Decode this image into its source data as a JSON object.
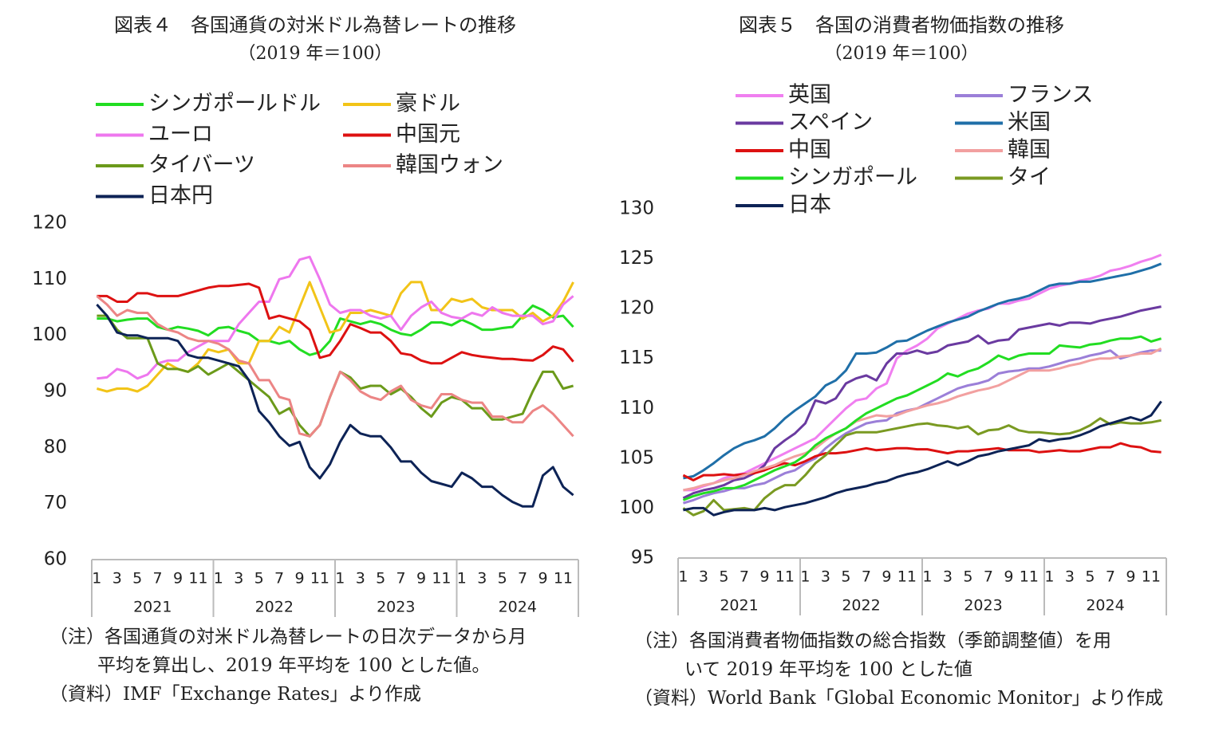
{
  "chart_data": [
    {
      "type": "line",
      "title": "図表４　各国通貨の対米ドル為替レートの推移",
      "subtitle": "（2019 年＝100）",
      "categories": [
        "1",
        null,
        "3",
        null,
        "5",
        null,
        "7",
        null,
        "9",
        null,
        "11",
        null,
        "1",
        null,
        "3",
        null,
        "5",
        null,
        "7",
        null,
        "9",
        null,
        "11",
        null,
        "1",
        null,
        "3",
        null,
        "5",
        null,
        "7",
        null,
        "9",
        null,
        "11",
        null,
        "1",
        null,
        "3",
        null,
        "5",
        null,
        "7",
        null,
        "9",
        null,
        "11",
        null
      ],
      "x_groups": [
        "2021",
        "2022",
        "2023",
        "2024"
      ],
      "ylim": [
        60,
        120
      ],
      "yticks": [
        60,
        70,
        80,
        90,
        100,
        110,
        120
      ],
      "series": [
        {
          "name": "シンガポールドル",
          "color": "#22dd22",
          "values": [
            103,
            103,
            102.5,
            102.8,
            103,
            103,
            101.5,
            101,
            101.5,
            101.2,
            100.8,
            100,
            101.3,
            101.5,
            100.8,
            100.3,
            99,
            99,
            98.5,
            99,
            97.5,
            96.5,
            97,
            99,
            103,
            102.5,
            102,
            102.5,
            102,
            101,
            100.3,
            100,
            101,
            102.3,
            102.3,
            101.8,
            102.8,
            102,
            101,
            101,
            101.3,
            101.5,
            103.5,
            105.3,
            104.5,
            103.2,
            103.5,
            101.5
          ]
        },
        {
          "name": "豪ドル",
          "color": "#f2c418",
          "values": [
            90.5,
            90,
            90.5,
            90.5,
            90,
            91,
            93,
            95,
            94,
            93.5,
            95,
            97.5,
            97,
            97.5,
            95,
            95,
            99,
            99,
            101.5,
            100.5,
            105,
            109.5,
            105,
            100.5,
            101,
            104,
            104,
            104.5,
            104,
            103.5,
            107.5,
            109.5,
            109.5,
            104.5,
            104.5,
            106.5,
            106,
            106.5,
            105,
            104.5,
            104.5,
            104.5,
            103,
            104,
            102.5,
            103.5,
            106,
            109.5
          ]
        },
        {
          "name": "ユーロ",
          "color": "#ee77ee",
          "values": [
            92.3,
            92.5,
            94,
            93.5,
            92.3,
            93,
            95,
            95.5,
            95.5,
            97,
            98,
            99,
            99,
            99,
            102,
            104,
            106,
            106,
            110,
            110.5,
            113.5,
            114,
            110,
            105.5,
            104,
            104.5,
            104.5,
            103.5,
            103,
            103.5,
            101,
            103.5,
            105,
            106,
            104,
            103.3,
            103,
            104,
            103.5,
            105,
            104,
            103.5,
            103.5,
            103.5,
            102,
            102.5,
            105.5,
            107
          ]
        },
        {
          "name": "中国元",
          "color": "#dd1111",
          "values": [
            107,
            107,
            106,
            106,
            107.5,
            107.5,
            107,
            107,
            107,
            107.5,
            108,
            108.5,
            108.8,
            108.8,
            109,
            109.2,
            108.5,
            103,
            103.5,
            103,
            102.5,
            101,
            96,
            96.5,
            99,
            102,
            101.3,
            100.5,
            100.5,
            99,
            96.8,
            96.5,
            95.5,
            95,
            95,
            96,
            97,
            96.5,
            96.2,
            96,
            95.8,
            95.8,
            95.6,
            95.5,
            96.5,
            98,
            97.5,
            95.3
          ]
        },
        {
          "name": "タイバーツ",
          "color": "#6b9a1a",
          "values": [
            103.5,
            103.5,
            101,
            99.5,
            99.5,
            99.5,
            95,
            94,
            94,
            93.5,
            94.5,
            93,
            94,
            95,
            93.5,
            92,
            90.5,
            89,
            86,
            87,
            84,
            82,
            84,
            89,
            93.5,
            92.5,
            90.5,
            91,
            91,
            89.5,
            90.5,
            89,
            87,
            85.5,
            88,
            89,
            88.5,
            87,
            87,
            85,
            85,
            85.5,
            86,
            90,
            93.5,
            93.5,
            90.5,
            91
          ]
        },
        {
          "name": "韓国ウォン",
          "color": "#ec8585",
          "values": [
            107,
            105.5,
            103.5,
            104.5,
            104,
            104,
            102,
            101,
            100.5,
            99.5,
            99,
            99,
            98.5,
            97.5,
            95.5,
            95,
            92,
            92,
            89,
            88.5,
            82.5,
            82,
            84,
            89,
            93.5,
            92,
            90,
            89,
            88.5,
            90,
            91,
            88.5,
            87.5,
            87,
            89.5,
            89.5,
            88.5,
            88,
            88,
            85.5,
            85.5,
            84.5,
            84.5,
            86.5,
            87.5,
            86,
            84,
            82
          ]
        },
        {
          "name": "日本円",
          "color": "#0d2356",
          "values": [
            105.5,
            103.5,
            100.5,
            100,
            100,
            99.5,
            99.5,
            99.5,
            99,
            96.5,
            96,
            96,
            95.5,
            95,
            94.5,
            92,
            86.5,
            84.5,
            82,
            80.3,
            81,
            76.5,
            74.5,
            77,
            81,
            84,
            82.5,
            82,
            82,
            80,
            77.5,
            77.5,
            75.5,
            74,
            73.5,
            73,
            75.5,
            74.5,
            73,
            73,
            71.5,
            70.3,
            69.5,
            69.5,
            75,
            76.5,
            73,
            71.5
          ]
        }
      ],
      "notes": [
        "（注）各国通貨の対米ドル為替レートの日次データから月",
        "平均を算出し、2019 年平均を 100 とした値。",
        "（資料）IMF「Exchange Rates」より作成"
      ]
    },
    {
      "type": "line",
      "title": "図表５　各国の消費者物価指数の推移",
      "subtitle": "（2019 年＝100）",
      "categories": [
        "1",
        null,
        "3",
        null,
        "5",
        null,
        "7",
        null,
        "9",
        null,
        "11",
        null,
        "1",
        null,
        "3",
        null,
        "5",
        null,
        "7",
        null,
        "9",
        null,
        "11",
        null,
        "1",
        null,
        "3",
        null,
        "5",
        null,
        "7",
        null,
        "9",
        null,
        "11",
        null,
        "1",
        null,
        "3",
        null,
        "5",
        null,
        "7",
        null,
        "9",
        null,
        "11",
        null
      ],
      "x_groups": [
        "2021",
        "2022",
        "2023",
        "2024"
      ],
      "ylim": [
        95,
        130
      ],
      "yticks": [
        95,
        100,
        105,
        110,
        115,
        120,
        125,
        130
      ],
      "series": [
        {
          "name": "英国",
          "color": "#f07ff0",
          "values": [
            101.8,
            101.8,
            102.2,
            102.5,
            103,
            103.3,
            103.5,
            104,
            104.5,
            105,
            105.5,
            106,
            106.5,
            107,
            108,
            109,
            110,
            110.8,
            111,
            112,
            112.5,
            115,
            115.8,
            116.3,
            117,
            118,
            118.5,
            119,
            119.5,
            119.8,
            120,
            120.5,
            120.5,
            120.8,
            121,
            121.5,
            122,
            122.3,
            122.5,
            122.8,
            123,
            123.3,
            123.8,
            124,
            124.3,
            124.7,
            125,
            125.4
          ]
        },
        {
          "name": "フランス",
          "color": "#9b7fd8",
          "values": [
            100.5,
            100.8,
            101.2,
            101.5,
            101.7,
            102,
            102,
            102.3,
            102.5,
            103,
            103.5,
            103.8,
            104.5,
            105,
            106,
            106.8,
            107.5,
            108,
            108.5,
            108.7,
            108.8,
            109.5,
            109.8,
            110,
            110.5,
            111,
            111.5,
            112,
            112.3,
            112.5,
            112.8,
            113.5,
            113.7,
            113.8,
            114,
            114,
            114.2,
            114.5,
            114.8,
            115,
            115.3,
            115.5,
            115.8,
            115,
            115.3,
            115.6,
            115.8,
            115.8
          ]
        },
        {
          "name": "スペイン",
          "color": "#6a3aa0",
          "values": [
            101,
            101.5,
            101.8,
            102,
            102.3,
            102.8,
            103,
            103.5,
            104.3,
            106,
            106.8,
            107.5,
            108.5,
            110.8,
            110.5,
            111,
            112.5,
            113,
            113.3,
            112.8,
            114.5,
            115.5,
            115.5,
            115.8,
            115.5,
            115.7,
            116.3,
            116.5,
            116.7,
            117.3,
            116.5,
            116.8,
            116.9,
            117.9,
            118.1,
            118.3,
            118.5,
            118.3,
            118.6,
            118.6,
            118.5,
            118.8,
            119,
            119.2,
            119.5,
            119.8,
            120,
            120.2
          ]
        },
        {
          "name": "米国",
          "color": "#1f6fa8",
          "values": [
            103,
            103.2,
            103.8,
            104.5,
            105.3,
            106,
            106.5,
            106.8,
            107.2,
            108,
            109,
            109.8,
            110.5,
            111.2,
            112.3,
            112.8,
            113.8,
            115.5,
            115.5,
            115.6,
            116.1,
            116.7,
            116.8,
            117.3,
            117.8,
            118.2,
            118.6,
            118.9,
            119.2,
            119.7,
            120.1,
            120.5,
            120.8,
            121,
            121.3,
            121.8,
            122.3,
            122.5,
            122.5,
            122.7,
            122.7,
            122.9,
            123.1,
            123.3,
            123.5,
            123.8,
            124.1,
            124.5
          ]
        },
        {
          "name": "中国",
          "color": "#dd1111",
          "values": [
            103.3,
            102.8,
            103.3,
            103.3,
            103.4,
            103.3,
            103.4,
            103.5,
            103.8,
            104.2,
            104.5,
            104.3,
            104.7,
            105.2,
            105.5,
            105.5,
            105.6,
            105.8,
            106,
            105.8,
            105.9,
            106,
            106,
            105.9,
            105.9,
            105.7,
            105.5,
            105.7,
            105.7,
            105.8,
            105.9,
            106,
            105.8,
            105.8,
            105.8,
            105.6,
            105.7,
            105.8,
            105.7,
            105.7,
            105.9,
            106.1,
            106.1,
            106.5,
            106.2,
            106.1,
            105.7,
            105.6
          ]
        },
        {
          "name": "韓国",
          "color": "#f2a0a0",
          "values": [
            101.8,
            102,
            102.3,
            102.5,
            102.8,
            103,
            103.3,
            103.7,
            104,
            104.3,
            104.8,
            105.2,
            105.5,
            106,
            106.8,
            107.5,
            108,
            108.7,
            109,
            109.3,
            109.2,
            109.3,
            109.7,
            110,
            110.3,
            110.5,
            110.8,
            111.2,
            111.5,
            111.8,
            112,
            112.3,
            112.8,
            113.3,
            113.8,
            113.8,
            113.8,
            114,
            114.3,
            114.5,
            114.8,
            115,
            115,
            115.2,
            115.3,
            115.5,
            115.5,
            116
          ]
        },
        {
          "name": "シンガポール",
          "color": "#22dd22",
          "values": [
            100.8,
            101.2,
            101.5,
            101.7,
            102,
            102,
            102.3,
            102.8,
            103.3,
            103.8,
            104.2,
            104.6,
            105.3,
            106.3,
            107,
            107.5,
            108,
            108.8,
            109.5,
            110,
            110.5,
            111,
            111.3,
            111.8,
            112.3,
            112.8,
            113.5,
            113.2,
            113.7,
            114,
            114.6,
            115.3,
            114.9,
            115.3,
            115.5,
            115.5,
            115.5,
            116.3,
            116.2,
            116.1,
            116.4,
            116.5,
            116.8,
            117,
            117,
            117.2,
            116.7,
            117
          ]
        },
        {
          "name": "タイ",
          "color": "#7a9a22",
          "values": [
            100,
            99.3,
            99.7,
            100.8,
            99.8,
            99.9,
            100,
            99.8,
            101,
            101.8,
            102.3,
            102.3,
            103.3,
            104.5,
            105.3,
            106.3,
            107.3,
            107.6,
            107.6,
            107.6,
            107.8,
            108,
            108.2,
            108.4,
            108.5,
            108.3,
            108.2,
            108,
            108.2,
            107.4,
            107.8,
            107.9,
            108.3,
            107.8,
            107.6,
            107.6,
            107.5,
            107.4,
            107.5,
            107.8,
            108.3,
            109,
            108.4,
            108.6,
            108.5,
            108.5,
            108.6,
            108.8
          ]
        },
        {
          "name": "日本",
          "color": "#0d2356",
          "values": [
            99.8,
            100,
            100,
            99.3,
            99.6,
            99.8,
            99.8,
            99.8,
            100,
            99.8,
            100.1,
            100.3,
            100.5,
            100.8,
            101.1,
            101.5,
            101.8,
            102,
            102.2,
            102.5,
            102.7,
            103.1,
            103.4,
            103.6,
            103.9,
            104.3,
            104.7,
            104.3,
            104.7,
            105.2,
            105.4,
            105.7,
            105.9,
            106.1,
            106.3,
            106.9,
            106.7,
            106.9,
            107,
            107.3,
            107.7,
            108.2,
            108.5,
            108.8,
            109.1,
            108.8,
            109.3,
            110.7
          ]
        }
      ],
      "notes": [
        "（注）各国消費者物価指数の総合指数（季節調整値）を用",
        "いて 2019 年平均を 100 とした値",
        "（資料）World Bank「Global Economic Monitor」より作成"
      ]
    }
  ]
}
